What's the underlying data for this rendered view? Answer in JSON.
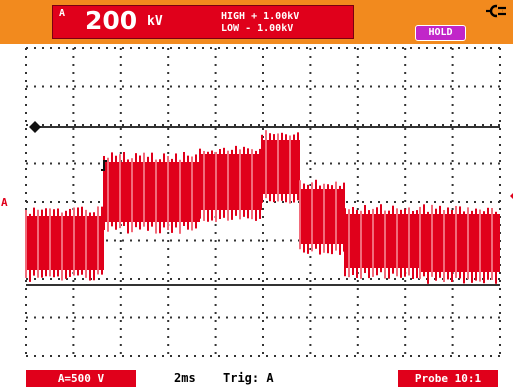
{
  "header": {
    "channel_label": "A",
    "reading_value": "200",
    "reading_unit": "kV",
    "high_text": "HIGH + 1.00kV",
    "low_text": "LOW - 1.00kV",
    "hold_label": "HOLD",
    "power_icon": "plug-icon"
  },
  "plot": {
    "channel_marker": "A"
  },
  "footer": {
    "range_label": "A=500 V",
    "timebase_label": "2ms",
    "trigger_label": "Trig: A",
    "probe_label": "Probe 10:1"
  },
  "colors": {
    "topbar": "#f28a1e",
    "reading_box": "#e0001b",
    "hold_badge": "#c126c9",
    "trace": "#e0001b",
    "trace_light": "#f26b7a",
    "grid_dot": "#333333",
    "cursor_line": "#333333"
  }
}
